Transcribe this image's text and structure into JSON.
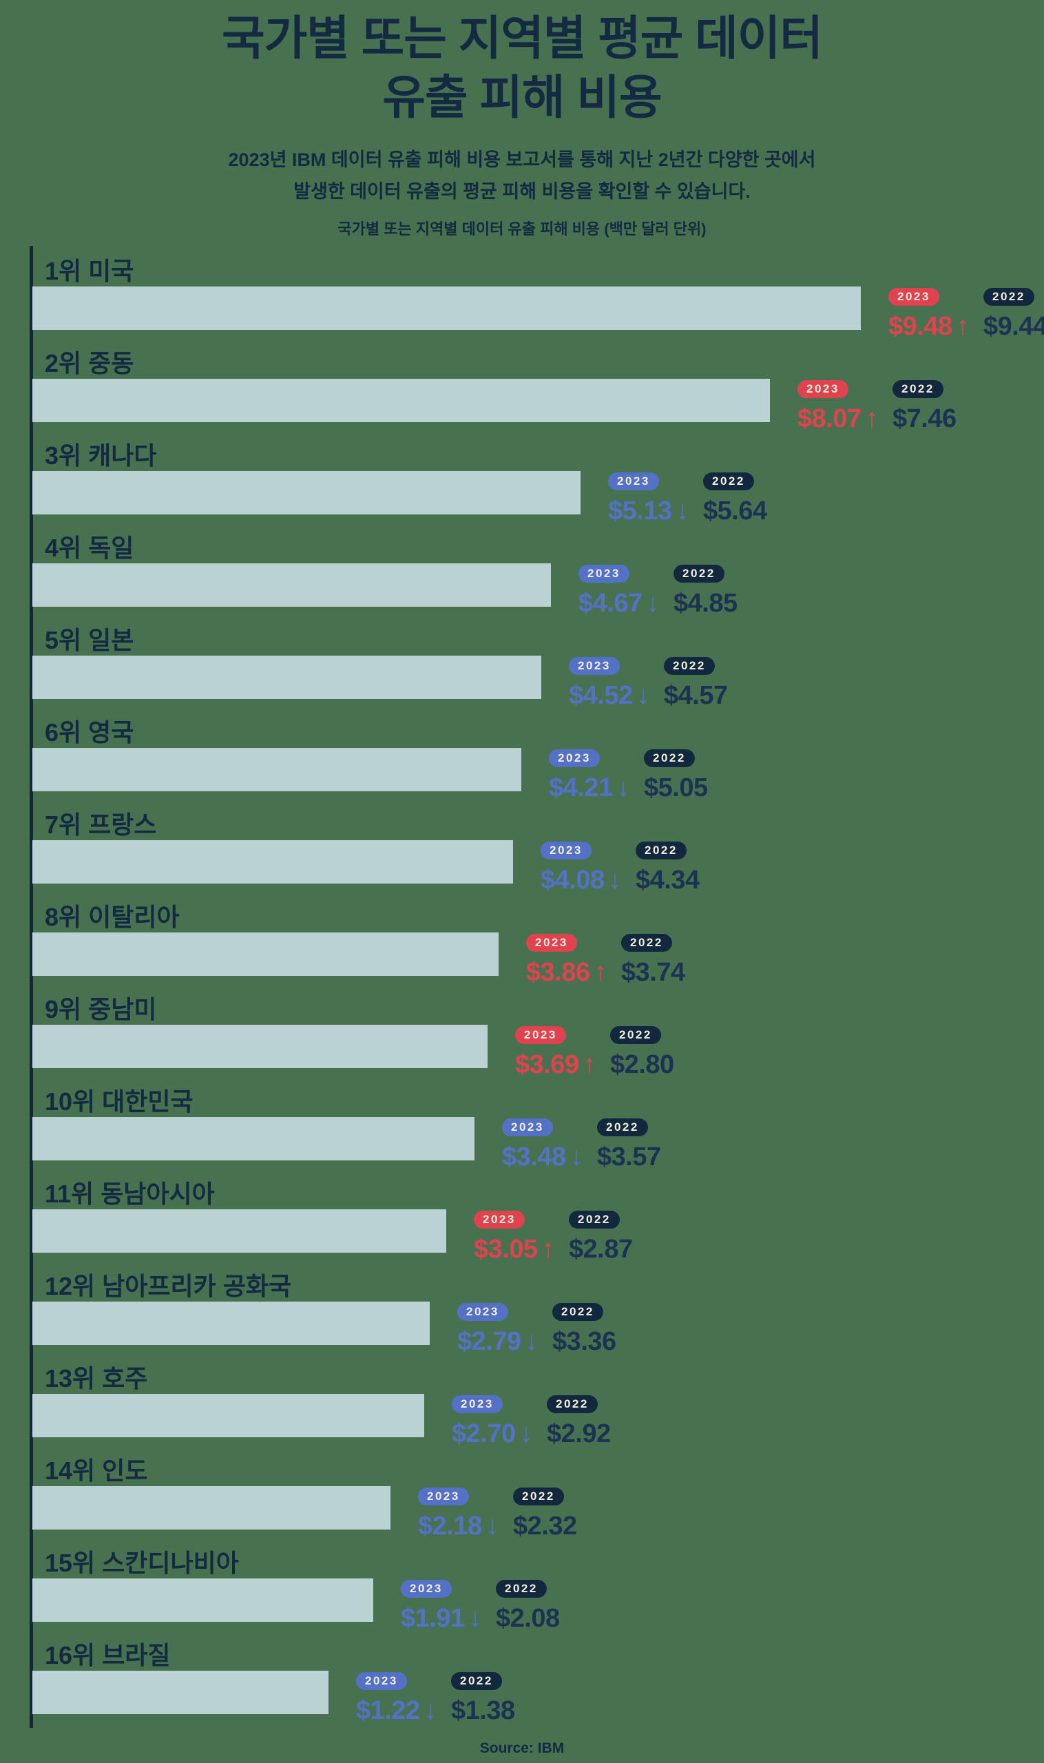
{
  "title": {
    "line1": "국가별 또는 지역별 평균 데이터",
    "line2": "유출 피해 비용"
  },
  "subtitle": {
    "line1": "2023년 IBM 데이터 유출 피해 비용 보고서를 통해 지난 2년간 다양한 곳에서",
    "line2": "발생한 데이터 유출의 평균 피해 비용을 확인할 수 있습니다."
  },
  "chart_caption": "국가별 또는 지역별 데이터 유출 피해 비용 (백만 달러 단위)",
  "source": "Source: IBM",
  "icons": {
    "up": "↑",
    "down": "↓"
  },
  "colors": {
    "background": "#48724F",
    "bar": "#BBD2D4",
    "navy": "#132A42",
    "badge_2022": "#12283E",
    "increase_red": "#E0434F",
    "decrease_blue": "#5372C7",
    "badge_text": "#F6EEDB"
  },
  "chart_data": {
    "type": "bar",
    "orientation": "horizontal",
    "title": "국가별 또는 지역별 평균 데이터 유출 피해 비용",
    "unit": "백만 달러 (USD millions)",
    "series_labels": [
      "2023",
      "2022"
    ],
    "legend_position": "right-of-bar",
    "grid": false,
    "xlim": [
      0,
      10
    ],
    "rows": [
      {
        "label": "1위 미국",
        "value_2023": 9.48,
        "value_2022": 9.44,
        "display_2023": "$9.48",
        "display_2022": "$9.44",
        "trend": "up"
      },
      {
        "label": "2위 중동",
        "value_2023": 8.07,
        "value_2022": 7.46,
        "display_2023": "$8.07",
        "display_2022": "$7.46",
        "trend": "up"
      },
      {
        "label": "3위 캐나다",
        "value_2023": 5.13,
        "value_2022": 5.64,
        "display_2023": "$5.13",
        "display_2022": "$5.64",
        "trend": "down"
      },
      {
        "label": "4위 독일",
        "value_2023": 4.67,
        "value_2022": 4.85,
        "display_2023": "$4.67",
        "display_2022": "$4.85",
        "trend": "down"
      },
      {
        "label": "5위 일본",
        "value_2023": 4.52,
        "value_2022": 4.57,
        "display_2023": "$4.52",
        "display_2022": "$4.57",
        "trend": "down"
      },
      {
        "label": "6위 영국",
        "value_2023": 4.21,
        "value_2022": 5.05,
        "display_2023": "$4.21",
        "display_2022": "$5.05",
        "trend": "down"
      },
      {
        "label": "7위 프랑스",
        "value_2023": 4.08,
        "value_2022": 4.34,
        "display_2023": "$4.08",
        "display_2022": "$4.34",
        "trend": "down"
      },
      {
        "label": "8위 이탈리아",
        "value_2023": 3.86,
        "value_2022": 3.74,
        "display_2023": "$3.86",
        "display_2022": "$3.74",
        "trend": "up"
      },
      {
        "label": "9위 중남미",
        "value_2023": 3.69,
        "value_2022": 2.8,
        "display_2023": "$3.69",
        "display_2022": "$2.80",
        "trend": "up"
      },
      {
        "label": "10위 대한민국",
        "value_2023": 3.48,
        "value_2022": 3.57,
        "display_2023": "$3.48",
        "display_2022": "$3.57",
        "trend": "down"
      },
      {
        "label": "11위 동남아시아",
        "value_2023": 3.05,
        "value_2022": 2.87,
        "display_2023": "$3.05",
        "display_2022": "$2.87",
        "trend": "up"
      },
      {
        "label": "12위 남아프리카 공화국",
        "value_2023": 2.79,
        "value_2022": 3.36,
        "display_2023": "$2.79",
        "display_2022": "$3.36",
        "trend": "down"
      },
      {
        "label": "13위 호주",
        "value_2023": 2.7,
        "value_2022": 2.92,
        "display_2023": "$2.70",
        "display_2022": "$2.92",
        "trend": "down"
      },
      {
        "label": "14위 인도",
        "value_2023": 2.18,
        "value_2022": 2.32,
        "display_2023": "$2.18",
        "display_2022": "$2.32",
        "trend": "down"
      },
      {
        "label": "15위 스칸디나비아",
        "value_2023": 1.91,
        "value_2022": 2.08,
        "display_2023": "$1.91",
        "display_2022": "$2.08",
        "trend": "down"
      },
      {
        "label": "16위 브라질",
        "value_2023": 1.22,
        "value_2022": 1.38,
        "display_2023": "$1.22",
        "display_2022": "$1.38",
        "trend": "down"
      }
    ]
  }
}
